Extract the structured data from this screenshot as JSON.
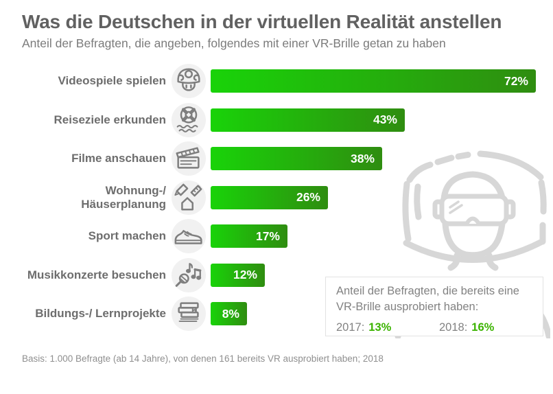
{
  "header": {
    "title": "Was die Deutschen in der virtuellen Realität anstellen",
    "subtitle": "Anteil der Befragten, die angeben, folgendes mit einer VR-Brille getan zu haben"
  },
  "chart_data": {
    "type": "bar",
    "orientation": "horizontal",
    "unit": "percent",
    "xlim": [
      0,
      76
    ],
    "grid": false,
    "legend": false,
    "bar_gradient": [
      "#19d309",
      "#2f8d10"
    ],
    "categories": [
      "Videospiele spielen",
      "Reiseziele erkunden",
      "Filme anschauen",
      "Wohnung-/ Häuserplanung",
      "Sport machen",
      "Musikkonzerte besuchen",
      "Bildungs-/ Lernprojekte"
    ],
    "values": [
      72,
      43,
      38,
      26,
      17,
      12,
      8
    ],
    "value_labels": [
      "72%",
      "43%",
      "38%",
      "26%",
      "17%",
      "12%",
      "8%"
    ],
    "icons": [
      "mushroom-game-icon",
      "lifebuoy-travel-icon",
      "clapperboard-icon",
      "house-planning-icon",
      "sneaker-icon",
      "microphone-notes-icon",
      "books-icon"
    ]
  },
  "infobox": {
    "text": "Anteil der Befragten, die bereits eine VR-Brille ausprobiert haben:",
    "entries": [
      {
        "year": "2017:",
        "value": "13%"
      },
      {
        "year": "2018:",
        "value": "16%"
      }
    ],
    "value_color": "#3bb300"
  },
  "illustration": "person-wearing-vr-headset",
  "footnote": "Basis: 1.000 Befragte (ab 14 Jahre), von denen 161 bereits VR ausprobiert haben; 2018"
}
